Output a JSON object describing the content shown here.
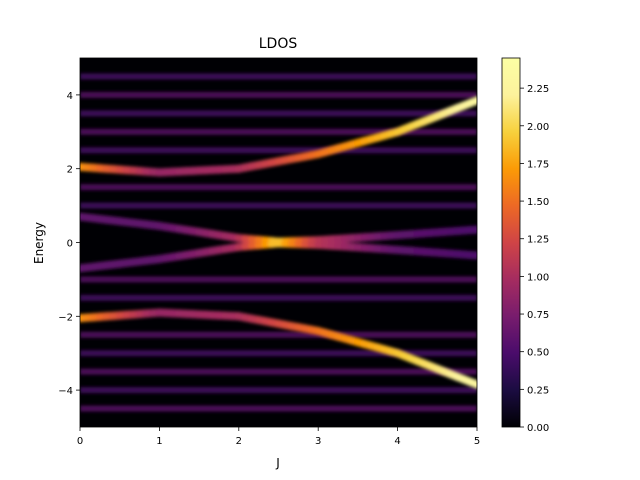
{
  "chart_data": {
    "type": "heatmap",
    "title": "LDOS",
    "xlabel": "J",
    "ylabel": "Energy",
    "xlim": [
      0,
      5
    ],
    "ylim": [
      -5,
      5
    ],
    "x_ticks": [
      0,
      1,
      2,
      3,
      4,
      5
    ],
    "x_tick_labels": [
      "0",
      "1",
      "2",
      "3",
      "4",
      "5"
    ],
    "y_ticks": [
      -4,
      -2,
      0,
      2,
      4
    ],
    "y_tick_labels": [
      "−4",
      "−2",
      "0",
      "2",
      "4"
    ],
    "colormap": "inferno",
    "colorbar": {
      "range": [
        0,
        2.45
      ],
      "ticks": [
        0.0,
        0.25,
        0.5,
        0.75,
        1.0,
        1.25,
        1.5,
        1.75,
        2.0,
        2.25
      ],
      "tick_labels": [
        "0.00",
        "0.25",
        "0.50",
        "0.75",
        "1.00",
        "1.25",
        "1.50",
        "1.75",
        "2.00",
        "2.25"
      ]
    },
    "bands": [
      {
        "J": [
          0,
          1,
          2,
          3,
          4,
          5
        ],
        "energy": [
          2.05,
          1.9,
          2.0,
          2.4,
          3.0,
          3.85
        ],
        "intensity": [
          1.7,
          0.9,
          1.0,
          1.5,
          1.9,
          2.3
        ]
      },
      {
        "J": [
          0,
          1,
          2,
          3,
          4,
          5
        ],
        "energy": [
          -2.05,
          -1.9,
          -2.0,
          -2.4,
          -3.0,
          -3.85
        ],
        "intensity": [
          1.7,
          0.9,
          1.0,
          1.5,
          1.9,
          2.3
        ]
      },
      {
        "J": [
          0,
          1,
          2,
          2.5,
          3,
          4,
          5
        ],
        "energy": [
          0.7,
          0.45,
          0.12,
          0.02,
          0.06,
          0.2,
          0.35
        ],
        "intensity": [
          0.6,
          0.6,
          1.0,
          1.95,
          1.1,
          0.6,
          0.5
        ]
      },
      {
        "J": [
          0,
          1,
          2,
          2.5,
          3,
          4,
          5
        ],
        "energy": [
          -0.7,
          -0.45,
          -0.12,
          -0.02,
          -0.06,
          -0.2,
          -0.35
        ],
        "intensity": [
          0.6,
          0.6,
          1.0,
          1.95,
          1.1,
          0.6,
          0.5
        ]
      }
    ],
    "faint_levels": [
      4.5,
      4.0,
      3.5,
      3.0,
      2.5,
      1.5,
      1.0,
      -1.0,
      -1.5,
      -2.5,
      -3.0,
      -3.5,
      -4.0,
      -4.5
    ]
  }
}
